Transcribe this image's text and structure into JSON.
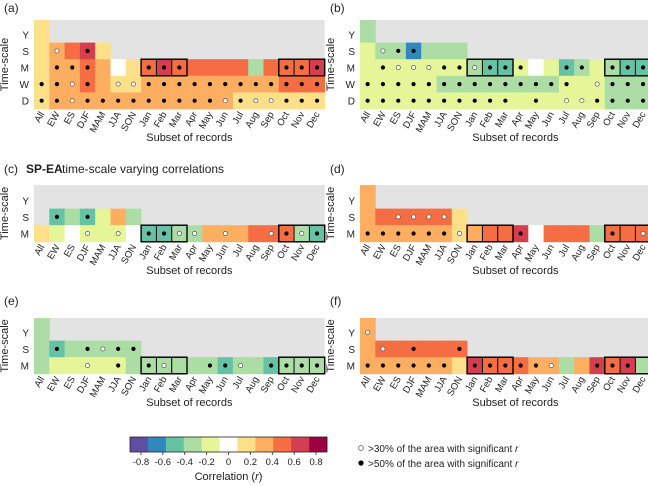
{
  "chart_data": {
    "type": "heatmap",
    "xlabel": "Subset of records",
    "ylabel": "Time-scale",
    "categories": [
      "All",
      "EW",
      "ES",
      "DJF",
      "MAM",
      "JJA",
      "SON",
      "Jan",
      "Feb",
      "Mar",
      "Apr",
      "May",
      "Jun",
      "Jul",
      "Aug",
      "Sep",
      "Oct",
      "Nov",
      "Dec"
    ],
    "colorbar": {
      "title": "Correlation (r)",
      "title_main": "Correlation (",
      "title_var": "r",
      "title_end": ")",
      "range": [
        -0.9,
        0.9
      ],
      "ticks": [
        -0.8,
        -0.6,
        -0.4,
        -0.2,
        0,
        0.2,
        0.4,
        0.6,
        0.8
      ],
      "tick_labels": [
        "-0.8",
        "-0.6",
        "-0.4",
        "-0.2",
        "0",
        "0.2",
        "0.4",
        "0.6",
        "0.8"
      ],
      "colors": [
        "#5e4fa2",
        "#3288bd",
        "#66c2a5",
        "#abdda4",
        "#e6f598",
        "#ffffff",
        "#fee08b",
        "#fdae61",
        "#f46d43",
        "#d53e4f",
        "#9e0142"
      ]
    },
    "legend": {
      "open": ">30% of the area with significant ",
      "filled": ">50% of the area with significant ",
      "var": "r"
    },
    "panels": [
      {
        "label": "(a)",
        "rows": [
          "Y",
          "S",
          "M",
          "W",
          "D"
        ],
        "values": [
          [
            0.1,
            null,
            null,
            null,
            null,
            null,
            null,
            null,
            null,
            null,
            null,
            null,
            null,
            null,
            null,
            null,
            null,
            null,
            null
          ],
          [
            0.1,
            0.35,
            0.45,
            0.6,
            0.1,
            null,
            null,
            null,
            null,
            null,
            null,
            null,
            null,
            null,
            null,
            null,
            null,
            null,
            null
          ],
          [
            0.1,
            0.3,
            0.3,
            0.45,
            0.3,
            -0.05,
            0.2,
            0.5,
            0.65,
            0.55,
            0.45,
            0.45,
            0.45,
            0.45,
            -0.35,
            0.45,
            0.55,
            0.55,
            0.65
          ],
          [
            0.1,
            0.3,
            0.35,
            0.45,
            0.3,
            0.2,
            0.2,
            0.3,
            0.3,
            0.3,
            0.3,
            0.3,
            0.3,
            0.3,
            0.3,
            0.3,
            0.45,
            0.45,
            0.45
          ],
          [
            0.1,
            0.25,
            0.25,
            0.3,
            0.25,
            0.25,
            0.25,
            0.25,
            0.25,
            0.25,
            0.25,
            0.25,
            0.25,
            0.1,
            0.15,
            0.2,
            0.2,
            0.2,
            0.2
          ]
        ],
        "markers": [
          [
            0,
            0,
            0,
            0,
            0,
            0,
            0,
            0,
            0,
            0,
            0,
            0,
            0,
            0,
            0,
            0,
            0,
            0,
            0
          ],
          [
            0,
            1,
            0,
            2,
            0,
            0,
            0,
            0,
            0,
            0,
            0,
            0,
            0,
            0,
            0,
            0,
            0,
            0,
            0
          ],
          [
            0,
            2,
            2,
            2,
            0,
            0,
            0,
            2,
            2,
            2,
            0,
            0,
            0,
            0,
            0,
            0,
            2,
            2,
            2
          ],
          [
            2,
            2,
            1,
            2,
            0,
            1,
            1,
            2,
            2,
            2,
            2,
            2,
            2,
            2,
            2,
            2,
            2,
            2,
            2
          ],
          [
            2,
            2,
            1,
            2,
            2,
            2,
            2,
            2,
            2,
            2,
            2,
            2,
            1,
            2,
            1,
            1,
            2,
            2,
            2
          ]
        ],
        "boxes": [
          [
            "M",
            7,
            9
          ],
          [
            "M",
            16,
            18
          ]
        ]
      },
      {
        "label": "(b)",
        "rows": [
          "Y",
          "S",
          "M",
          "W",
          "D"
        ],
        "values": [
          [
            -0.35,
            null,
            null,
            null,
            null,
            null,
            null,
            null,
            null,
            null,
            null,
            null,
            null,
            null,
            null,
            null,
            null,
            null,
            null
          ],
          [
            -0.2,
            -0.25,
            -0.4,
            -0.6,
            -0.35,
            -0.35,
            -0.35,
            null,
            null,
            null,
            null,
            null,
            null,
            null,
            null,
            null,
            null,
            null,
            null
          ],
          [
            -0.2,
            -0.15,
            -0.15,
            -0.2,
            -0.15,
            -0.2,
            -0.2,
            -0.35,
            -0.55,
            -0.55,
            -0.15,
            0.0,
            -0.15,
            -0.55,
            -0.4,
            -0.2,
            -0.35,
            -0.55,
            -0.55
          ],
          [
            -0.2,
            -0.2,
            -0.15,
            -0.2,
            -0.2,
            -0.3,
            -0.3,
            -0.35,
            -0.35,
            -0.35,
            -0.35,
            -0.35,
            -0.35,
            -0.15,
            -0.2,
            -0.2,
            -0.3,
            -0.35,
            -0.35
          ],
          [
            -0.15,
            -0.15,
            -0.15,
            -0.15,
            -0.15,
            -0.15,
            -0.15,
            -0.15,
            -0.15,
            -0.15,
            -0.15,
            -0.15,
            -0.15,
            -0.15,
            -0.15,
            -0.15,
            -0.3,
            -0.3,
            -0.3
          ]
        ],
        "markers": [
          [
            0,
            0,
            0,
            0,
            0,
            0,
            0,
            0,
            0,
            0,
            0,
            0,
            0,
            0,
            0,
            0,
            0,
            0,
            0
          ],
          [
            0,
            1,
            2,
            2,
            0,
            0,
            0,
            0,
            0,
            0,
            0,
            0,
            0,
            0,
            0,
            0,
            0,
            0,
            0
          ],
          [
            0,
            2,
            1,
            1,
            1,
            2,
            2,
            1,
            2,
            2,
            2,
            0,
            0,
            2,
            2,
            0,
            2,
            2,
            2
          ],
          [
            2,
            2,
            2,
            2,
            2,
            2,
            2,
            2,
            2,
            2,
            2,
            2,
            2,
            2,
            0,
            1,
            2,
            2,
            2
          ],
          [
            2,
            2,
            2,
            2,
            2,
            2,
            2,
            2,
            2,
            2,
            0,
            2,
            0,
            1,
            1,
            2,
            2,
            2,
            2
          ]
        ],
        "boxes": [
          [
            "M",
            7,
            9
          ],
          [
            "M",
            16,
            18
          ]
        ]
      },
      {
        "label": "(c)",
        "title_bold": "SP-EA",
        "title_rest": " time-scale varying correlations",
        "rows": [
          "Y",
          "S",
          "M"
        ],
        "values": [
          [
            null,
            null,
            null,
            null,
            null,
            null,
            null,
            null,
            null,
            null,
            null,
            null,
            null,
            null,
            null,
            null,
            null,
            null,
            null
          ],
          [
            null,
            -0.5,
            -0.25,
            -0.55,
            -0.15,
            0.25,
            -0.35,
            null,
            null,
            null,
            null,
            null,
            null,
            null,
            null,
            null,
            null,
            null,
            null
          ],
          [
            0.1,
            -0.15,
            0.0,
            -0.15,
            -0.15,
            -0.15,
            0.0,
            -0.5,
            -0.45,
            -0.35,
            -0.35,
            0.25,
            0.25,
            0.25,
            0.45,
            0.45,
            0.45,
            -0.35,
            -0.55
          ]
        ],
        "markers": [
          [
            0,
            0,
            0,
            0,
            0,
            0,
            0,
            0,
            0,
            0,
            0,
            0,
            0,
            0,
            0,
            0,
            0,
            0,
            0
          ],
          [
            0,
            2,
            0,
            2,
            0,
            0,
            0,
            0,
            0,
            0,
            0,
            0,
            0,
            0,
            0,
            0,
            0,
            0,
            0
          ],
          [
            0,
            0,
            0,
            1,
            0,
            1,
            0,
            2,
            2,
            1,
            1,
            0,
            1,
            0,
            0,
            1,
            2,
            1,
            2
          ]
        ],
        "boxes": [
          [
            "M",
            7,
            9
          ],
          [
            "M",
            16,
            18
          ]
        ]
      },
      {
        "label": "(d)",
        "rows": [
          "Y",
          "S",
          "M"
        ],
        "values": [
          [
            0.25,
            null,
            null,
            null,
            null,
            null,
            null,
            null,
            null,
            null,
            null,
            null,
            null,
            null,
            null,
            null,
            null,
            null,
            null
          ],
          [
            0.25,
            0.45,
            0.45,
            0.45,
            0.45,
            0.45,
            0.15,
            null,
            null,
            null,
            null,
            null,
            null,
            null,
            null,
            null,
            null,
            null,
            null
          ],
          [
            0.25,
            0.25,
            0.25,
            0.25,
            0.25,
            0.25,
            0.2,
            0.3,
            0.45,
            0.45,
            0.6,
            0.0,
            0.45,
            0.45,
            0.45,
            -0.35,
            0.45,
            0.45,
            0.45
          ]
        ],
        "markers": [
          [
            0,
            0,
            0,
            0,
            0,
            0,
            0,
            0,
            0,
            0,
            0,
            0,
            0,
            0,
            0,
            0,
            0,
            0,
            0
          ],
          [
            0,
            0,
            1,
            1,
            1,
            1,
            0,
            0,
            0,
            0,
            0,
            0,
            0,
            0,
            0,
            0,
            0,
            0,
            0
          ],
          [
            2,
            2,
            2,
            2,
            2,
            2,
            1,
            0,
            0,
            0,
            2,
            0,
            0,
            0,
            0,
            0,
            2,
            0,
            1
          ]
        ],
        "boxes": [
          [
            "M",
            7,
            9
          ],
          [
            "M",
            16,
            18
          ]
        ]
      },
      {
        "label": "(e)",
        "rows": [
          "Y",
          "S",
          "M"
        ],
        "values": [
          [
            -0.35,
            null,
            null,
            null,
            null,
            null,
            null,
            null,
            null,
            null,
            null,
            null,
            null,
            null,
            null,
            null,
            null,
            null,
            null
          ],
          [
            -0.35,
            -0.55,
            -0.35,
            -0.35,
            -0.35,
            -0.35,
            -0.35,
            null,
            null,
            null,
            null,
            null,
            null,
            null,
            null,
            null,
            null,
            null,
            null
          ],
          [
            -0.35,
            -0.15,
            -0.15,
            -0.15,
            -0.15,
            -0.15,
            -0.35,
            -0.35,
            -0.35,
            -0.35,
            -0.35,
            -0.35,
            -0.55,
            -0.35,
            -0.35,
            -0.55,
            -0.35,
            -0.35,
            -0.35
          ]
        ],
        "markers": [
          [
            0,
            0,
            0,
            0,
            0,
            0,
            0,
            0,
            0,
            0,
            0,
            0,
            0,
            0,
            0,
            0,
            0,
            0,
            0
          ],
          [
            0,
            2,
            0,
            2,
            1,
            2,
            2,
            0,
            0,
            0,
            0,
            0,
            0,
            0,
            0,
            0,
            0,
            0,
            0
          ],
          [
            0,
            0,
            0,
            1,
            0,
            2,
            0,
            2,
            1,
            0,
            0,
            2,
            2,
            1,
            0,
            2,
            2,
            2,
            2
          ]
        ],
        "boxes": [
          [
            "M",
            7,
            9
          ],
          [
            "M",
            16,
            18
          ]
        ]
      },
      {
        "label": "(f)",
        "rows": [
          "Y",
          "S",
          "M"
        ],
        "values": [
          [
            0.3,
            null,
            null,
            null,
            null,
            null,
            null,
            null,
            null,
            null,
            null,
            null,
            null,
            null,
            null,
            null,
            null,
            null,
            null
          ],
          [
            0.3,
            0.55,
            0.45,
            0.45,
            0.45,
            0.45,
            0.55,
            null,
            null,
            null,
            null,
            null,
            null,
            null,
            null,
            null,
            null,
            null,
            null
          ],
          [
            0.25,
            0.25,
            0.25,
            0.25,
            0.25,
            0.25,
            0.1,
            0.6,
            0.45,
            0.45,
            0.45,
            0.25,
            0.25,
            -0.35,
            0.25,
            0.6,
            0.45,
            0.6,
            -0.35
          ]
        ],
        "markers": [
          [
            1,
            0,
            0,
            0,
            0,
            0,
            0,
            0,
            0,
            0,
            0,
            0,
            0,
            0,
            0,
            0,
            0,
            0,
            0
          ],
          [
            0,
            1,
            0,
            2,
            0,
            0,
            2,
            0,
            0,
            0,
            0,
            0,
            0,
            0,
            0,
            0,
            0,
            0,
            0
          ],
          [
            2,
            2,
            2,
            2,
            2,
            2,
            0,
            2,
            2,
            2,
            2,
            2,
            1,
            0,
            0,
            2,
            2,
            2,
            0
          ]
        ],
        "boxes": [
          [
            "M",
            7,
            9
          ],
          [
            "M",
            16,
            18
          ]
        ]
      }
    ]
  }
}
